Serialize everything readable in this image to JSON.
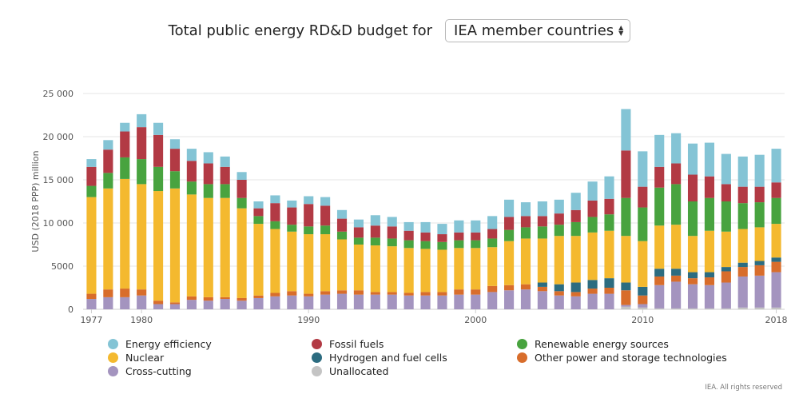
{
  "header": {
    "title": "Total public energy RD&D budget for",
    "region_select": "IEA member countries"
  },
  "credit": "IEA. All rights reserved",
  "colors": {
    "energy_efficiency": "#84c4d5",
    "fossil_fuels": "#b23a44",
    "renewables": "#48a33f",
    "nuclear": "#f4b92f",
    "hydrogen": "#2c6c80",
    "other_power": "#d86d2b",
    "cross_cutting": "#a494bf",
    "unallocated": "#c4c4c4"
  },
  "chart_data": {
    "type": "bar",
    "stacked": true,
    "ylabel": "USD (2018 PPP) million",
    "ylim": [
      0,
      25000
    ],
    "yticks": [
      0,
      5000,
      10000,
      15000,
      20000,
      25000
    ],
    "ytick_labels": [
      "0",
      "5000",
      "10 000",
      "15 000",
      "20 000",
      "25 000"
    ],
    "xtick_labels": [
      "1977",
      "1980",
      "1990",
      "2000",
      "2010",
      "2018"
    ],
    "x": [
      1977,
      1978,
      1979,
      1980,
      1981,
      1982,
      1983,
      1984,
      1985,
      1986,
      1987,
      1988,
      1989,
      1990,
      1991,
      1992,
      1993,
      1994,
      1995,
      1996,
      1997,
      1998,
      1999,
      2000,
      2001,
      2002,
      2003,
      2004,
      2005,
      2006,
      2007,
      2008,
      2009,
      2010,
      2011,
      2012,
      2013,
      2014,
      2015,
      2016,
      2017,
      2018
    ],
    "grid": true,
    "legend_position": "bottom",
    "series": [
      {
        "name": "Unallocated",
        "key": "unallocated",
        "values": [
          0,
          0,
          0,
          0,
          0,
          0,
          0,
          0,
          0,
          0,
          0,
          0,
          0,
          0,
          0,
          0,
          0,
          0,
          0,
          0,
          0,
          0,
          0,
          0,
          0,
          0,
          0,
          0,
          0,
          0,
          0,
          0,
          300,
          200,
          100,
          100,
          100,
          100,
          100,
          200,
          200,
          200
        ]
      },
      {
        "name": "Cross-cutting",
        "key": "cross_cutting",
        "values": [
          1200,
          1400,
          1400,
          1600,
          600,
          600,
          1100,
          1000,
          1200,
          1000,
          1300,
          1500,
          1600,
          1500,
          1700,
          1800,
          1700,
          1700,
          1700,
          1600,
          1600,
          1600,
          1700,
          1700,
          2000,
          2200,
          2300,
          2100,
          1600,
          1500,
          1800,
          1800,
          200,
          400,
          2700,
          3100,
          2800,
          2700,
          3000,
          3600,
          3700,
          4100
        ]
      },
      {
        "name": "Other power and storage technologies",
        "key": "other_power",
        "values": [
          600,
          900,
          1000,
          700,
          400,
          200,
          400,
          400,
          200,
          300,
          300,
          400,
          500,
          300,
          400,
          400,
          500,
          300,
          300,
          300,
          400,
          400,
          600,
          600,
          700,
          600,
          600,
          500,
          500,
          500,
          600,
          700,
          1700,
          1000,
          1000,
          700,
          700,
          900,
          1300,
          1100,
          1200,
          1200
        ]
      },
      {
        "name": "Hydrogen and fuel cells",
        "key": "hydrogen",
        "values": [
          0,
          0,
          0,
          0,
          0,
          0,
          0,
          0,
          0,
          0,
          0,
          0,
          0,
          0,
          0,
          0,
          0,
          0,
          0,
          0,
          0,
          0,
          0,
          0,
          0,
          0,
          0,
          500,
          800,
          1100,
          1000,
          1100,
          900,
          1000,
          900,
          800,
          700,
          600,
          500,
          500,
          500,
          500
        ]
      },
      {
        "name": "Nuclear",
        "key": "nuclear",
        "values": [
          11200,
          11700,
          12700,
          12200,
          12700,
          13200,
          11800,
          11500,
          11500,
          10400,
          8300,
          7400,
          6900,
          6900,
          6600,
          5900,
          5300,
          5400,
          5300,
          5200,
          5000,
          4900,
          4800,
          4800,
          4500,
          5100,
          5300,
          5100,
          5600,
          5400,
          5500,
          5500,
          5400,
          5300,
          5000,
          5100,
          4200,
          4800,
          4100,
          3900,
          3900,
          3900
        ]
      },
      {
        "name": "Renewable energy sources",
        "key": "renewables",
        "values": [
          1300,
          1800,
          2500,
          2900,
          2800,
          2000,
          1500,
          1600,
          1600,
          1200,
          900,
          900,
          800,
          900,
          1000,
          900,
          800,
          900,
          900,
          900,
          900,
          900,
          900,
          900,
          1000,
          1300,
          1300,
          1400,
          1300,
          1600,
          1800,
          1900,
          4400,
          3900,
          4400,
          4700,
          4000,
          3800,
          3500,
          3000,
          2900,
          3000
        ]
      },
      {
        "name": "Fossil fuels",
        "key": "fossil_fuels",
        "values": [
          2200,
          2700,
          3000,
          3700,
          3700,
          2600,
          2400,
          2400,
          2000,
          2100,
          900,
          2100,
          2000,
          2600,
          2300,
          1500,
          1200,
          1400,
          1400,
          1100,
          1000,
          900,
          900,
          900,
          1100,
          1500,
          1300,
          1200,
          1300,
          1400,
          1900,
          1800,
          5500,
          2400,
          2400,
          2400,
          3100,
          2500,
          2000,
          1900,
          1800,
          1800
        ]
      },
      {
        "name": "Energy efficiency",
        "key": "energy_efficiency",
        "values": [
          900,
          1100,
          1000,
          1500,
          1400,
          1100,
          1400,
          1300,
          1200,
          900,
          800,
          900,
          800,
          900,
          1000,
          1000,
          900,
          1200,
          1100,
          1000,
          1200,
          1200,
          1400,
          1400,
          1500,
          2000,
          1600,
          1700,
          1600,
          2000,
          2200,
          2600,
          4800,
          4100,
          3700,
          3500,
          3600,
          3900,
          3500,
          3500,
          3700,
          3900
        ]
      }
    ]
  },
  "legend": [
    {
      "label": "Energy efficiency",
      "key": "energy_efficiency"
    },
    {
      "label": "Fossil fuels",
      "key": "fossil_fuels"
    },
    {
      "label": "Renewable energy sources",
      "key": "renewables"
    },
    {
      "label": "Nuclear",
      "key": "nuclear"
    },
    {
      "label": "Hydrogen and fuel cells",
      "key": "hydrogen"
    },
    {
      "label": "Other power and storage technologies",
      "key": "other_power"
    },
    {
      "label": "Cross-cutting",
      "key": "cross_cutting"
    },
    {
      "label": "Unallocated",
      "key": "unallocated"
    }
  ]
}
